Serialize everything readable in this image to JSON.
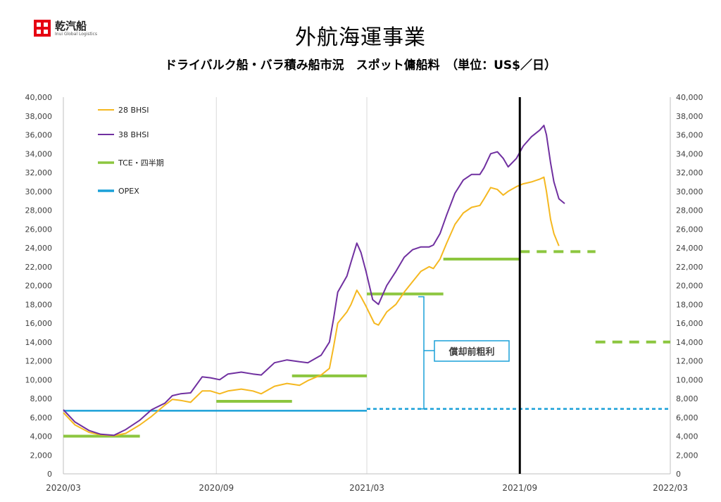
{
  "header": {
    "logo_text": "乾汽船",
    "logo_subtext": "Inui Global Logistics",
    "title": "外航海運事業",
    "subtitle": "ドライバルク船・バラ積み船市況　スポット傭船料　（単位：US$／日）"
  },
  "chart_data": {
    "type": "line",
    "ylim": [
      0,
      40000
    ],
    "yticks": [
      "0",
      "2,000",
      "4,000",
      "6,000",
      "8,000",
      "10,000",
      "12,000",
      "14,000",
      "16,000",
      "18,000",
      "20,000",
      "22,000",
      "24,000",
      "26,000",
      "28,000",
      "30,000",
      "32,000",
      "34,000",
      "36,000",
      "38,000",
      "40,000"
    ],
    "xlim": [
      "2020/03",
      "2022/03"
    ],
    "xticks": [
      "2020/03",
      "2020/09",
      "2021/03",
      "2021/09",
      "2022/03"
    ],
    "grid": "vertical",
    "legend_position": "top-left",
    "legend": [
      {
        "label": "28 BHSI",
        "color": "#f5b820"
      },
      {
        "label": "38 BHSI",
        "color": "#7030a0"
      },
      {
        "label": "TCE・四半期",
        "color": "#8cc63f"
      },
      {
        "label": "OPEX",
        "color": "#1aa0d8"
      }
    ],
    "current_date_marker": "2021/09",
    "series": [
      {
        "name": "28 BHSI",
        "color": "#f5b820",
        "points": [
          [
            "2020/03/01",
            6500
          ],
          [
            "2020/03/15",
            5200
          ],
          [
            "2020/04/01",
            4400
          ],
          [
            "2020/04/15",
            4150
          ],
          [
            "2020/05/01",
            4050
          ],
          [
            "2020/05/15",
            4300
          ],
          [
            "2020/06/01",
            5200
          ],
          [
            "2020/06/15",
            6100
          ],
          [
            "2020/07/01",
            7300
          ],
          [
            "2020/07/10",
            7900
          ],
          [
            "2020/07/20",
            7800
          ],
          [
            "2020/08/01",
            7600
          ],
          [
            "2020/08/15",
            8800
          ],
          [
            "2020/08/25",
            8800
          ],
          [
            "2020/09/05",
            8500
          ],
          [
            "2020/09/15",
            8800
          ],
          [
            "2020/10/01",
            9000
          ],
          [
            "2020/10/15",
            8800
          ],
          [
            "2020/10/25",
            8500
          ],
          [
            "2020/11/10",
            9300
          ],
          [
            "2020/11/25",
            9600
          ],
          [
            "2020/12/10",
            9400
          ],
          [
            "2020/12/20",
            9900
          ],
          [
            "2021/01/05",
            10500
          ],
          [
            "2021/01/15",
            11200
          ],
          [
            "2021/01/20",
            13500
          ],
          [
            "2021/01/25",
            16000
          ],
          [
            "2021/02/05",
            17200
          ],
          [
            "2021/02/10",
            18000
          ],
          [
            "2021/02/17",
            19500
          ],
          [
            "2021/02/22",
            18800
          ],
          [
            "2021/02/28",
            17800
          ],
          [
            "2021/03/10",
            16000
          ],
          [
            "2021/03/15",
            15800
          ],
          [
            "2021/03/25",
            17200
          ],
          [
            "2021/04/05",
            18000
          ],
          [
            "2021/04/15",
            19300
          ],
          [
            "2021/04/25",
            20400
          ],
          [
            "2021/05/05",
            21500
          ],
          [
            "2021/05/15",
            22000
          ],
          [
            "2021/05/20",
            21800
          ],
          [
            "2021/05/28",
            22800
          ],
          [
            "2021/06/05",
            24500
          ],
          [
            "2021/06/15",
            26500
          ],
          [
            "2021/06/25",
            27700
          ],
          [
            "2021/07/05",
            28300
          ],
          [
            "2021/07/15",
            28500
          ],
          [
            "2021/07/20",
            29200
          ],
          [
            "2021/07/28",
            30400
          ],
          [
            "2021/08/05",
            30200
          ],
          [
            "2021/08/12",
            29600
          ],
          [
            "2021/08/18",
            30000
          ],
          [
            "2021/08/28",
            30500
          ],
          [
            "2021/09/05",
            30800
          ],
          [
            "2021/09/15",
            31000
          ],
          [
            "2021/09/25",
            31300
          ],
          [
            "2021/09/30",
            31500
          ],
          [
            "2021/10/03",
            30000
          ],
          [
            "2021/10/08",
            27000
          ],
          [
            "2021/10/12",
            25500
          ],
          [
            "2021/10/18",
            24200
          ]
        ]
      },
      {
        "name": "38 BHSI",
        "color": "#7030a0",
        "points": [
          [
            "2020/03/01",
            6800
          ],
          [
            "2020/03/15",
            5500
          ],
          [
            "2020/04/01",
            4600
          ],
          [
            "2020/04/15",
            4200
          ],
          [
            "2020/05/01",
            4100
          ],
          [
            "2020/05/15",
            4700
          ],
          [
            "2020/06/01",
            5700
          ],
          [
            "2020/06/15",
            6800
          ],
          [
            "2020/07/01",
            7500
          ],
          [
            "2020/07/10",
            8300
          ],
          [
            "2020/07/20",
            8500
          ],
          [
            "2020/08/01",
            8600
          ],
          [
            "2020/08/15",
            10300
          ],
          [
            "2020/08/25",
            10200
          ],
          [
            "2020/09/05",
            10000
          ],
          [
            "2020/09/15",
            10600
          ],
          [
            "2020/10/01",
            10800
          ],
          [
            "2020/10/15",
            10600
          ],
          [
            "2020/10/25",
            10500
          ],
          [
            "2020/11/10",
            11800
          ],
          [
            "2020/11/25",
            12100
          ],
          [
            "2020/12/10",
            11900
          ],
          [
            "2020/12/20",
            11800
          ],
          [
            "2021/01/05",
            12600
          ],
          [
            "2021/01/15",
            14000
          ],
          [
            "2021/01/20",
            16500
          ],
          [
            "2021/01/25",
            19300
          ],
          [
            "2021/02/05",
            21000
          ],
          [
            "2021/02/10",
            22500
          ],
          [
            "2021/02/17",
            24500
          ],
          [
            "2021/02/22",
            23500
          ],
          [
            "2021/02/28",
            21500
          ],
          [
            "2021/03/08",
            18500
          ],
          [
            "2021/03/15",
            18000
          ],
          [
            "2021/03/25",
            20000
          ],
          [
            "2021/04/05",
            21500
          ],
          [
            "2021/04/15",
            23000
          ],
          [
            "2021/04/25",
            23800
          ],
          [
            "2021/05/05",
            24100
          ],
          [
            "2021/05/15",
            24100
          ],
          [
            "2021/05/20",
            24300
          ],
          [
            "2021/05/28",
            25500
          ],
          [
            "2021/06/05",
            27500
          ],
          [
            "2021/06/15",
            29800
          ],
          [
            "2021/06/25",
            31200
          ],
          [
            "2021/07/05",
            31800
          ],
          [
            "2021/07/15",
            31800
          ],
          [
            "2021/07/20",
            32500
          ],
          [
            "2021/07/28",
            34000
          ],
          [
            "2021/08/05",
            34200
          ],
          [
            "2021/08/12",
            33500
          ],
          [
            "2021/08/18",
            32600
          ],
          [
            "2021/08/28",
            33500
          ],
          [
            "2021/09/05",
            34800
          ],
          [
            "2021/09/15",
            35800
          ],
          [
            "2021/09/25",
            36500
          ],
          [
            "2021/09/30",
            37000
          ],
          [
            "2021/10/03",
            36000
          ],
          [
            "2021/10/08",
            33000
          ],
          [
            "2021/10/12",
            31000
          ],
          [
            "2021/10/18",
            29200
          ],
          [
            "2021/10/25",
            28700
          ]
        ]
      }
    ],
    "tce_quarterly": [
      {
        "start": "2020/03/01",
        "end": "2020/06/01",
        "value": 4000,
        "style": "solid"
      },
      {
        "start": "2020/09/01",
        "end": "2020/12/01",
        "value": 7700,
        "style": "solid"
      },
      {
        "start": "2020/12/01",
        "end": "2021/03/01",
        "value": 10400,
        "style": "solid"
      },
      {
        "start": "2021/03/01",
        "end": "2021/06/01",
        "value": 19100,
        "style": "solid"
      },
      {
        "start": "2021/06/01",
        "end": "2021/09/01",
        "value": 22800,
        "style": "solid"
      },
      {
        "start": "2021/09/01",
        "end": "2021/12/01",
        "value": 23600,
        "style": "dashed"
      },
      {
        "start": "2021/12/01",
        "end": "2022/03/01",
        "value": 14000,
        "style": "dashed"
      }
    ],
    "opex": [
      {
        "start": "2020/03/01",
        "end": "2021/03/01",
        "value": 6700,
        "style": "solid"
      },
      {
        "start": "2021/03/01",
        "end": "2022/03/01",
        "value": 6900,
        "style": "dashed"
      }
    ],
    "annotation": {
      "label": "償却前粗利",
      "from_value": 6900,
      "to_value": 18800
    }
  }
}
